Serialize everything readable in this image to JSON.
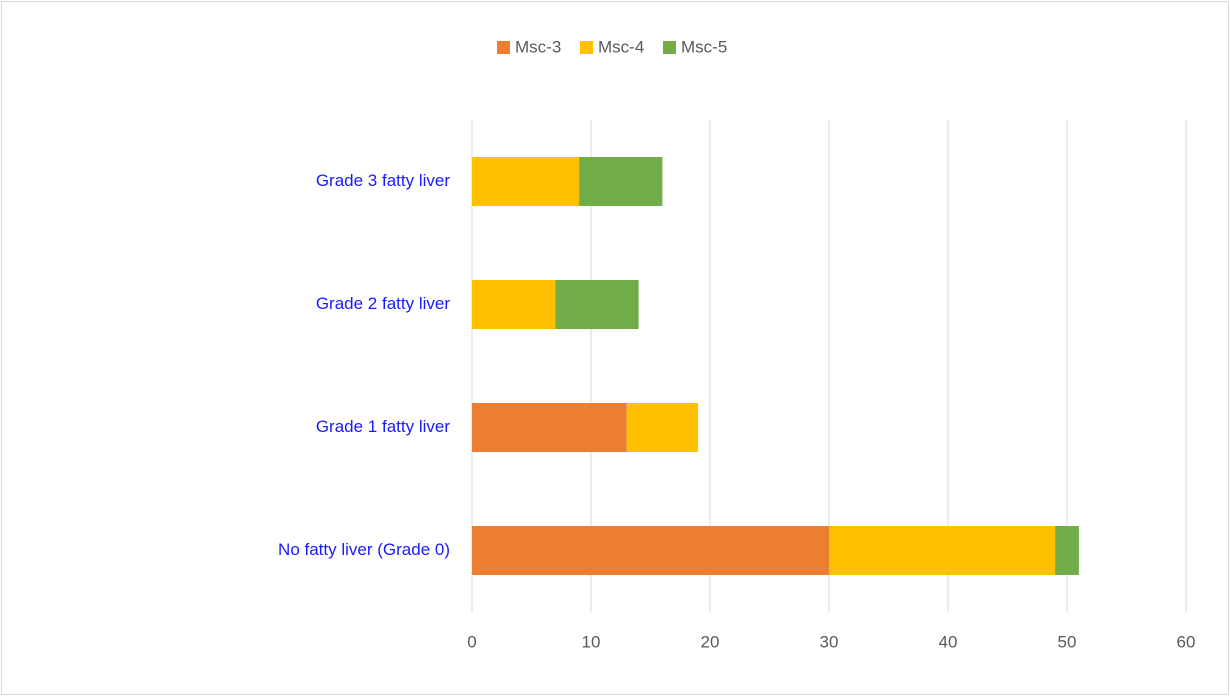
{
  "chart_data": {
    "type": "bar",
    "orientation": "horizontal",
    "stacked": true,
    "categories": [
      "No fatty liver (Grade 0)",
      "Grade 1 fatty liver",
      "Grade 2 fatty liver",
      "Grade 3 fatty liver"
    ],
    "series": [
      {
        "name": "Msc-3",
        "color": "#ed7d31",
        "values": [
          30,
          13,
          0,
          0
        ]
      },
      {
        "name": "Msc-4",
        "color": "#ffc000",
        "values": [
          19,
          6,
          7,
          9
        ]
      },
      {
        "name": "Msc-5",
        "color": "#70ad47",
        "values": [
          2,
          0,
          7,
          7
        ]
      }
    ],
    "xlim": [
      0,
      60
    ],
    "xticks": [
      0,
      10,
      20,
      30,
      40,
      50,
      60
    ],
    "grid": true,
    "legend": "top"
  }
}
